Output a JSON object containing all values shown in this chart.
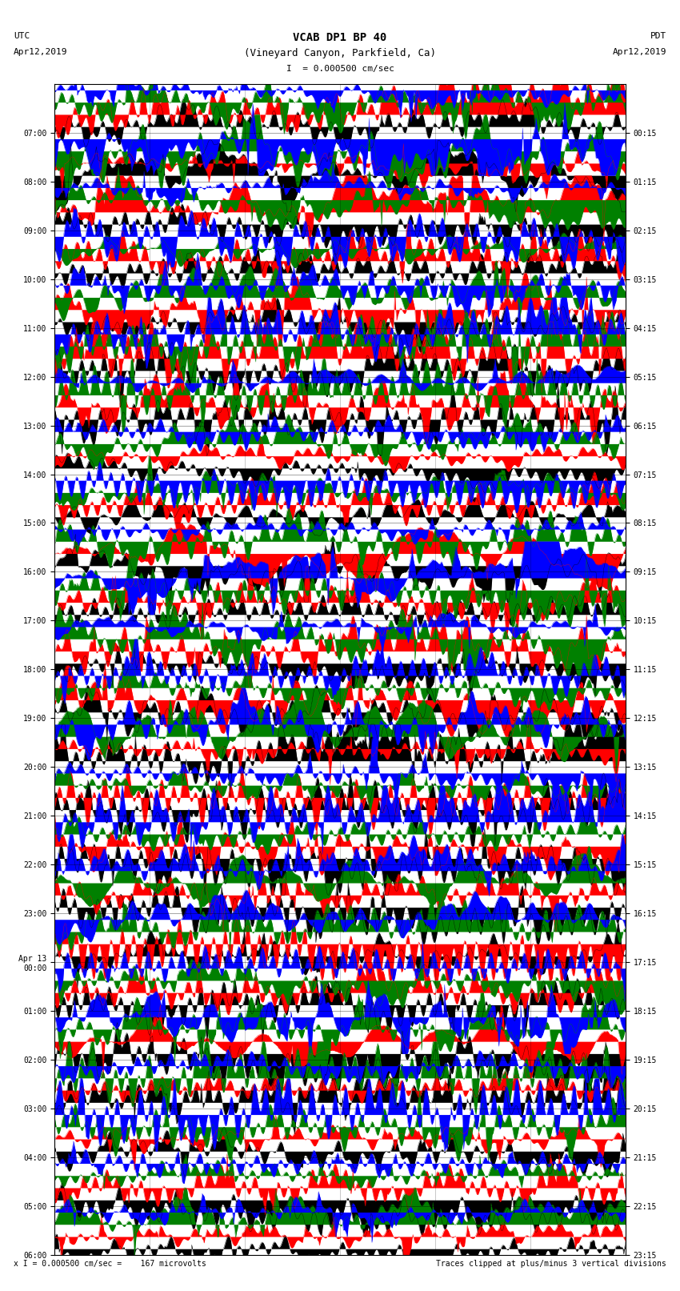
{
  "title_line1": "VCAB DP1 BP 40",
  "title_line2": "(Vineyard Canyon, Parkfield, Ca)",
  "scale_label": "= 0.000500 cm/sec",
  "left_label_top": "UTC",
  "left_label_date": "Apr12,2019",
  "right_label_top": "PDT",
  "right_label_date": "Apr12,2019",
  "bottom_text_left": "= 0.000500 cm/sec =    167 microvolts",
  "bottom_text_right": "Traces clipped at plus/minus 3 vertical divisions",
  "utc_times": [
    "07:00",
    "08:00",
    "09:00",
    "10:00",
    "11:00",
    "12:00",
    "13:00",
    "14:00",
    "15:00",
    "16:00",
    "17:00",
    "18:00",
    "19:00",
    "20:00",
    "21:00",
    "22:00",
    "23:00",
    "Apr 13\n00:00",
    "01:00",
    "02:00",
    "03:00",
    "04:00",
    "05:00",
    "06:00"
  ],
  "pdt_times": [
    "00:15",
    "01:15",
    "02:15",
    "03:15",
    "04:15",
    "05:15",
    "06:15",
    "07:15",
    "08:15",
    "09:15",
    "10:15",
    "11:15",
    "12:15",
    "13:15",
    "14:15",
    "15:15",
    "16:15",
    "17:15",
    "18:15",
    "19:15",
    "20:15",
    "21:15",
    "22:15",
    "23:15"
  ],
  "n_rows": 24,
  "colors": [
    "black",
    "red",
    "green",
    "blue"
  ],
  "bg_color": "white",
  "plot_bg": "white",
  "seed": 42
}
